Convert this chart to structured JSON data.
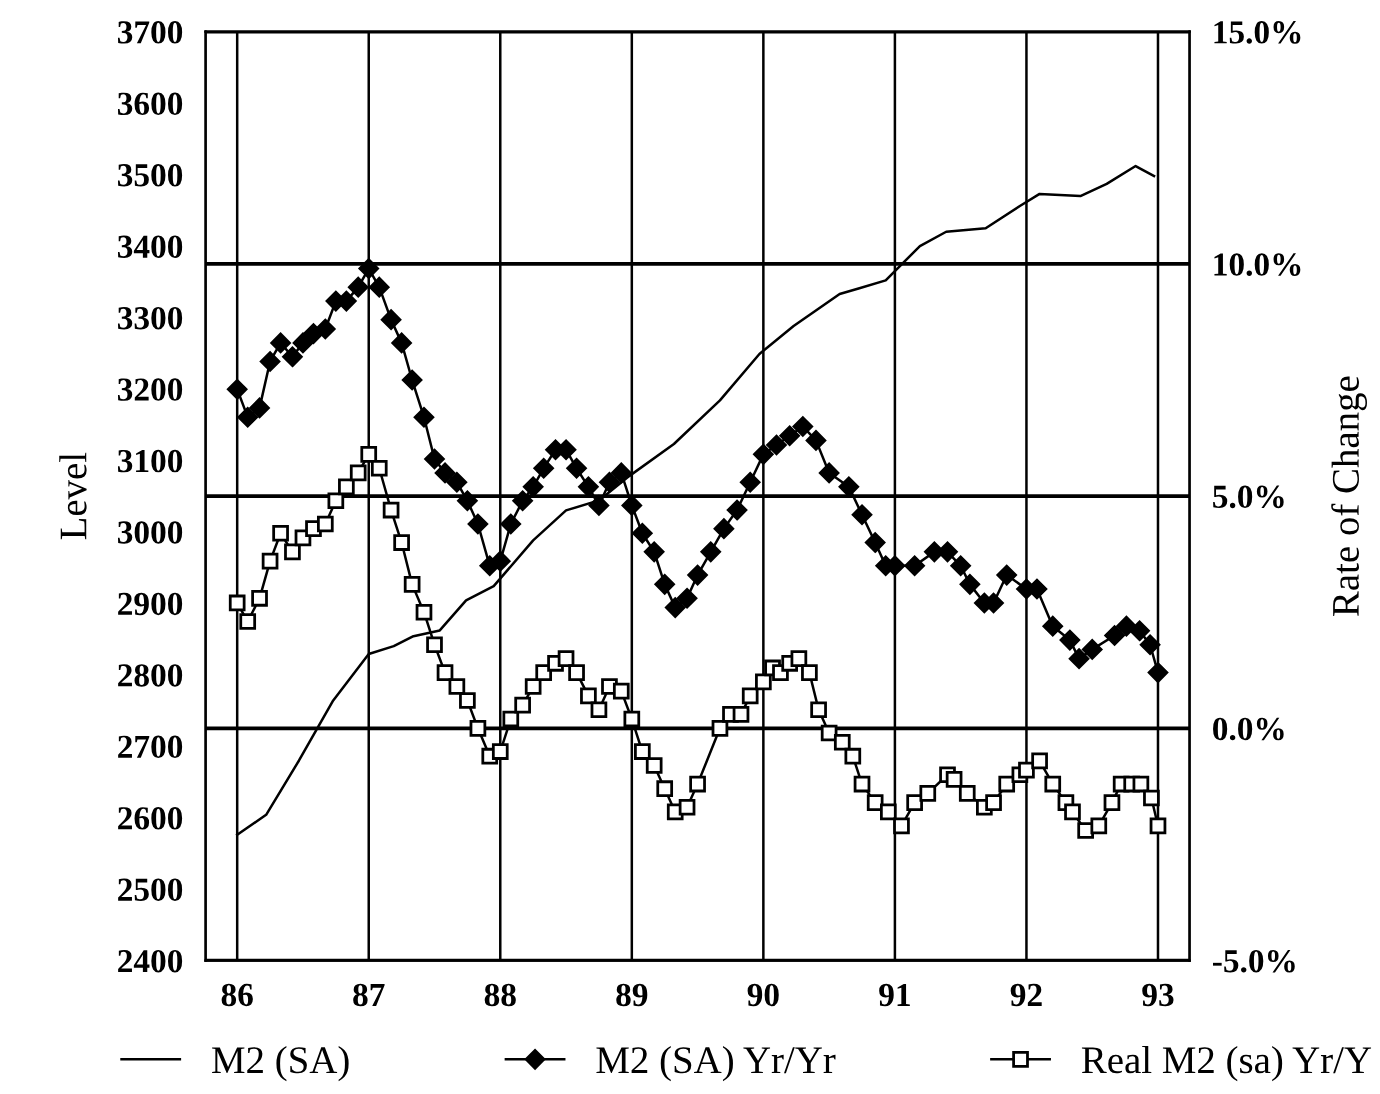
{
  "chart_data": {
    "type": "line",
    "ylabel": "Level",
    "y2label": "Rate of Change",
    "xlim": [
      85.76,
      93.24
    ],
    "xticks": [
      86,
      87,
      88,
      89,
      90,
      91,
      92,
      93
    ],
    "ylim": [
      2400,
      3700
    ],
    "yticks": [
      2400,
      2500,
      2600,
      2700,
      2800,
      2900,
      3000,
      3100,
      3200,
      3300,
      3400,
      3500,
      3600,
      3700
    ],
    "y2lim": [
      -5,
      15
    ],
    "y2ticks": [
      {
        "value": -5,
        "label": "-5.0%"
      },
      {
        "value": 0,
        "label": "0.0%"
      },
      {
        "value": 5,
        "label": "5.0%"
      },
      {
        "value": 10,
        "label": "10.0%"
      },
      {
        "value": 15,
        "label": "15.0%"
      }
    ],
    "grid": true,
    "legend": "bottom",
    "series": [
      {
        "name": "M2 (SA)",
        "color": "#000000",
        "marker": "none",
        "x": [
          86.0,
          86.22,
          86.47,
          86.73,
          87.0,
          87.19,
          87.34,
          87.54,
          87.74,
          87.95,
          88.25,
          88.5,
          88.75,
          88.98,
          89.32,
          89.67,
          89.97,
          90.23,
          90.58,
          90.73,
          90.93,
          91.19,
          91.39,
          91.69,
          91.95,
          92.1,
          92.41,
          92.61,
          92.83,
          92.97
        ],
        "values": [
          2576,
          2604,
          2680,
          2764,
          2829,
          2840,
          2854,
          2862,
          2904,
          2924,
          2988,
          3030,
          3044,
          3078,
          3123,
          3184,
          3249,
          3288,
          3333,
          3341,
          3352,
          3400,
          3420,
          3425,
          3456,
          3473,
          3470,
          3487,
          3512,
          3498
        ]
      },
      {
        "name": "M2 (SA) Yr/Yr",
        "color": "#000000",
        "marker": "diamond",
        "axis": "y2",
        "x": [
          86.0,
          86.08,
          86.17,
          86.25,
          86.33,
          86.42,
          86.5,
          86.58,
          86.67,
          86.75,
          86.83,
          86.92,
          87.0,
          87.08,
          87.17,
          87.25,
          87.33,
          87.42,
          87.5,
          87.58,
          87.67,
          87.75,
          87.83,
          87.92,
          88.0,
          88.08,
          88.17,
          88.25,
          88.33,
          88.42,
          88.5,
          88.58,
          88.67,
          88.75,
          88.83,
          88.92,
          89.0,
          89.08,
          89.17,
          89.25,
          89.33,
          89.42,
          89.5,
          89.6,
          89.7,
          89.8,
          89.9,
          90.0,
          90.1,
          90.2,
          90.3,
          90.4,
          90.5,
          90.65,
          90.75,
          90.85,
          90.93,
          91.0,
          91.15,
          91.3,
          91.4,
          91.5,
          91.57,
          91.68,
          91.75,
          91.85,
          92.0,
          92.08,
          92.2,
          92.33,
          92.4,
          92.5,
          92.67,
          92.76,
          92.86,
          92.94,
          93.0
        ],
        "values": [
          7.3,
          6.7,
          6.9,
          7.9,
          8.3,
          8.0,
          8.3,
          8.5,
          8.6,
          9.2,
          9.2,
          9.5,
          9.9,
          9.5,
          8.8,
          8.3,
          7.5,
          6.7,
          5.8,
          5.5,
          5.3,
          4.9,
          4.4,
          3.5,
          3.6,
          4.4,
          4.9,
          5.2,
          5.6,
          6.0,
          6.0,
          5.6,
          5.2,
          4.8,
          5.3,
          5.5,
          4.8,
          4.2,
          3.8,
          3.1,
          2.6,
          2.8,
          3.3,
          3.8,
          4.3,
          4.7,
          5.3,
          5.9,
          6.1,
          6.3,
          6.5,
          6.2,
          5.5,
          5.2,
          4.6,
          4.0,
          3.5,
          3.5,
          3.5,
          3.8,
          3.8,
          3.5,
          3.1,
          2.7,
          2.7,
          3.3,
          3.0,
          3.0,
          2.2,
          1.9,
          1.5,
          1.7,
          2.0,
          2.2,
          2.1,
          1.8,
          1.2
        ]
      },
      {
        "name": "Real M2 (sa) Yr/Y",
        "color": "#000000",
        "marker": "square",
        "axis": "y2",
        "x": [
          86.0,
          86.08,
          86.17,
          86.25,
          86.33,
          86.42,
          86.5,
          86.58,
          86.67,
          86.75,
          86.83,
          86.92,
          87.0,
          87.08,
          87.17,
          87.25,
          87.33,
          87.42,
          87.5,
          87.58,
          87.67,
          87.75,
          87.83,
          87.92,
          88.0,
          88.08,
          88.17,
          88.25,
          88.33,
          88.42,
          88.5,
          88.58,
          88.67,
          88.75,
          88.83,
          88.92,
          89.0,
          89.08,
          89.17,
          89.25,
          89.33,
          89.42,
          89.5,
          89.67,
          89.75,
          89.83,
          89.9,
          90.0,
          90.07,
          90.13,
          90.2,
          90.27,
          90.35,
          90.42,
          90.5,
          90.6,
          90.68,
          90.75,
          90.85,
          90.95,
          91.05,
          91.15,
          91.25,
          91.4,
          91.45,
          91.55,
          91.68,
          91.75,
          91.85,
          91.95,
          92.0,
          92.1,
          92.2,
          92.3,
          92.35,
          92.45,
          92.55,
          92.65,
          92.72,
          92.8,
          92.87,
          92.95,
          93.0
        ],
        "values": [
          2.7,
          2.3,
          2.8,
          3.6,
          4.2,
          3.8,
          4.1,
          4.3,
          4.4,
          4.9,
          5.2,
          5.5,
          5.9,
          5.6,
          4.7,
          4.0,
          3.1,
          2.5,
          1.8,
          1.2,
          0.9,
          0.6,
          0.0,
          -0.6,
          -0.5,
          0.2,
          0.5,
          0.9,
          1.2,
          1.4,
          1.5,
          1.2,
          0.7,
          0.4,
          0.9,
          0.8,
          0.2,
          -0.5,
          -0.8,
          -1.3,
          -1.8,
          -1.7,
          -1.2,
          0.0,
          0.3,
          0.3,
          0.7,
          1.0,
          1.3,
          1.2,
          1.4,
          1.5,
          1.2,
          0.4,
          -0.1,
          -0.3,
          -0.6,
          -1.2,
          -1.6,
          -1.8,
          -2.1,
          -1.6,
          -1.4,
          -1.0,
          -1.1,
          -1.4,
          -1.7,
          -1.6,
          -1.2,
          -1.0,
          -0.9,
          -0.7,
          -1.2,
          -1.6,
          -1.8,
          -2.2,
          -2.1,
          -1.6,
          -1.2,
          -1.2,
          -1.2,
          -1.5,
          -2.1
        ]
      }
    ]
  }
}
